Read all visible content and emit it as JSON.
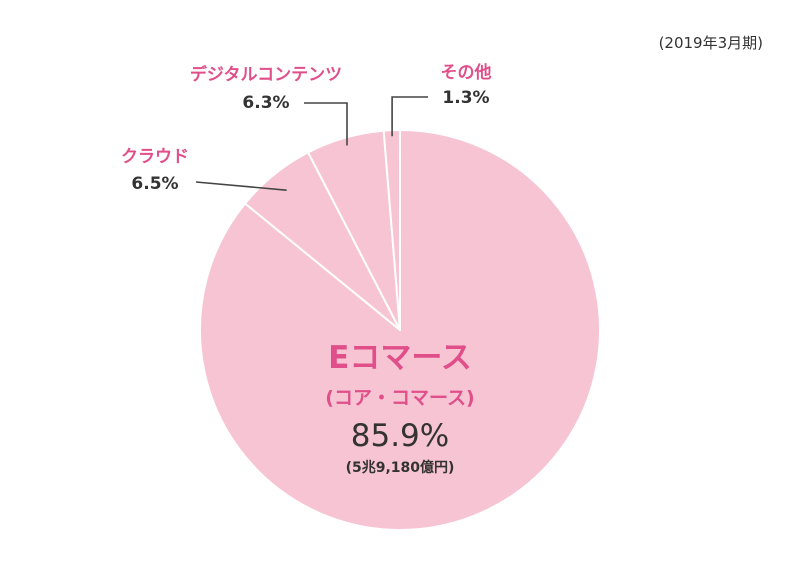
{
  "colors": {
    "slice": "#f7c4d3",
    "slice_border": "#ffffff",
    "label_accent": "#e04f8a",
    "text": "#333333",
    "leader": "#444444"
  },
  "chart_data": {
    "type": "pie",
    "note": "(2019年3月期)",
    "slices": [
      {
        "name": "Eコマース",
        "sublabel": "(コア・コマース)",
        "value": 85.9,
        "value_label": "85.9%",
        "amount": "(5兆9,180億円)"
      },
      {
        "name": "クラウド",
        "value": 6.5,
        "value_label": "6.5%"
      },
      {
        "name": "デジタルコンテンツ",
        "value": 6.3,
        "value_label": "6.3%"
      },
      {
        "name": "その他",
        "value": 1.3,
        "value_label": "1.3%"
      }
    ]
  }
}
